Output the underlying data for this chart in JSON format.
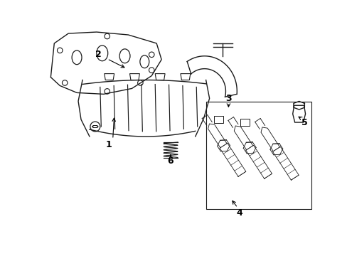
{
  "background_color": "#ffffff",
  "line_color": "#1a1a1a",
  "callout_color": "#000000",
  "fig_width": 4.89,
  "fig_height": 3.6,
  "dpi": 100
}
